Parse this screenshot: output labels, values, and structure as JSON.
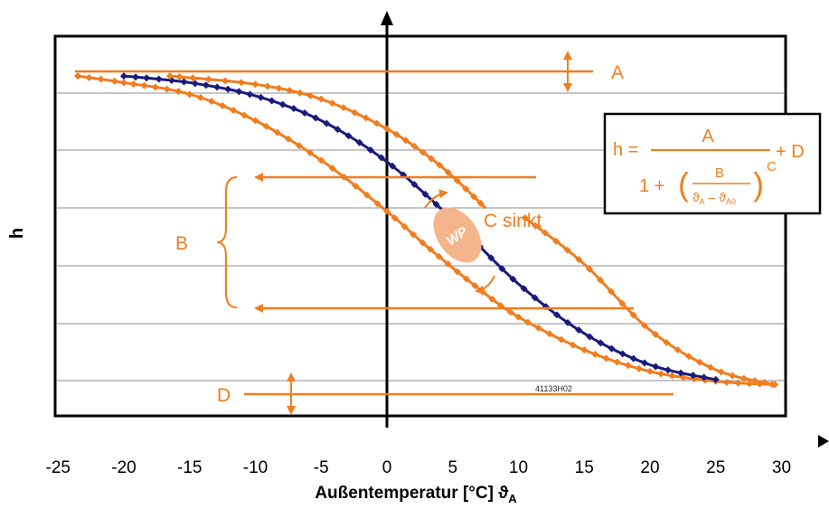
{
  "chart_data": {
    "type": "line",
    "xlabel": "Außentemperatur [°C] ϑ",
    "xlabel_sub": "A",
    "ylabel": "h",
    "xlim": [
      -25,
      30
    ],
    "x_ticks": [
      -25,
      -20,
      -15,
      -10,
      -5,
      0,
      5,
      10,
      15,
      20,
      25,
      30
    ],
    "grid": "horizontal",
    "watermark": "41133H02",
    "series": [
      {
        "color": "#f07d1e",
        "points": [
          [
            -23.5,
            0.975
          ],
          [
            -20,
            0.955
          ],
          [
            -15,
            0.92
          ],
          [
            -10,
            0.84
          ],
          [
            -5,
            0.72
          ],
          [
            0,
            0.565
          ],
          [
            3,
            0.46
          ],
          [
            7,
            0.33
          ],
          [
            10,
            0.245
          ],
          [
            15,
            0.145
          ],
          [
            20,
            0.08
          ],
          [
            25,
            0.05
          ],
          [
            29.5,
            0.04
          ]
        ]
      },
      {
        "color": "#1a1a7a",
        "points": [
          [
            -20,
            0.975
          ],
          [
            -15,
            0.955
          ],
          [
            -10,
            0.915
          ],
          [
            -5,
            0.84
          ],
          [
            0,
            0.715
          ],
          [
            5,
            0.54
          ],
          [
            10,
            0.345
          ],
          [
            15,
            0.195
          ],
          [
            20,
            0.1
          ],
          [
            25,
            0.055
          ]
        ]
      },
      {
        "color": "#f07d1e",
        "points": [
          [
            -16.5,
            0.975
          ],
          [
            -10,
            0.95
          ],
          [
            -5,
            0.905
          ],
          [
            0,
            0.815
          ],
          [
            4,
            0.705
          ],
          [
            7.5,
            0.575
          ]
        ]
      },
      {
        "color": "#f07d1e",
        "points": [
          [
            10.5,
            0.545
          ],
          [
            15,
            0.405
          ],
          [
            20,
            0.205
          ],
          [
            25,
            0.085
          ],
          [
            29.5,
            0.04
          ]
        ]
      }
    ],
    "colors": {
      "orange": "#f07d1e",
      "navy": "#1a1a7a",
      "wp_fill": "#f5b58a"
    }
  },
  "annotations": {
    "A": "A",
    "B": "B",
    "D": "D",
    "c_sinkt": "C sinkt",
    "wp": "WP"
  },
  "formula": {
    "h_eq": "h =",
    "numerator": "A",
    "one_plus": "1 +",
    "inner_num": "B",
    "inner_den_theta": "ϑ",
    "inner_den_sub1": "A",
    "inner_den_minus": " – ϑ",
    "inner_den_sub2": "A0",
    "exp": "C",
    "plus_d": "+ D"
  }
}
